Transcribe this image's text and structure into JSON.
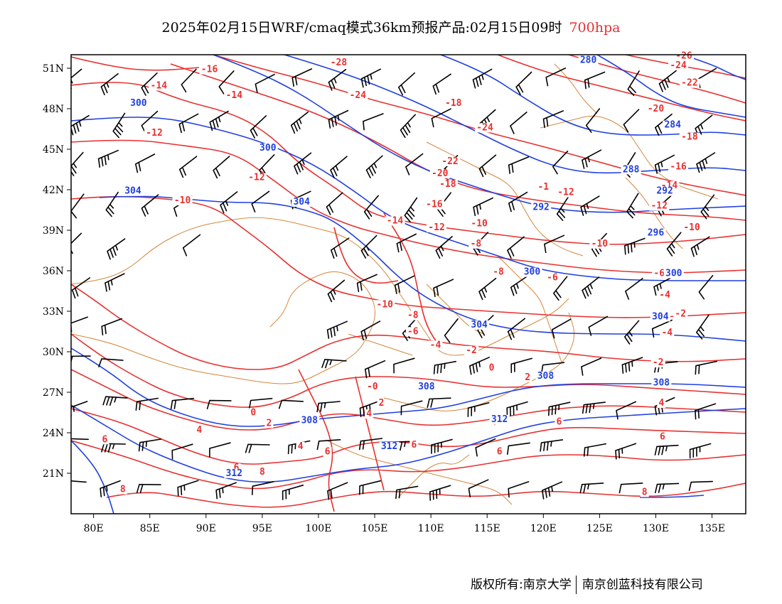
{
  "title": {
    "main": "2025年02月15日WRF/cmaq模式36km预报产品:02月15日09时",
    "level": "700hpa"
  },
  "axes": {
    "lon_labels": [
      "80E",
      "85E",
      "90E",
      "95E",
      "100E",
      "105E",
      "110E",
      "115E",
      "120E",
      "125E",
      "130E",
      "135E"
    ],
    "lon_values": [
      80,
      85,
      90,
      95,
      100,
      105,
      110,
      115,
      120,
      125,
      130,
      135
    ],
    "lat_labels": [
      "51N",
      "48N",
      "45N",
      "42N",
      "39N",
      "36N",
      "33N",
      "30N",
      "27N",
      "24N",
      "21N"
    ],
    "lat_values": [
      51,
      48,
      45,
      42,
      39,
      36,
      33,
      30,
      27,
      24,
      21
    ],
    "lon_range": [
      78,
      138
    ],
    "lat_range": [
      18,
      52
    ]
  },
  "colors": {
    "temperature": "#e8302f",
    "geopotential": "#1f3fe0",
    "border": "#d4873c",
    "wind": "#000000"
  },
  "temperature_labels": [
    {
      "v": "-28",
      "lon": 101.8,
      "lat": 51.2
    },
    {
      "v": "-26",
      "lon": 132.5,
      "lat": 51.7
    },
    {
      "v": "-24",
      "lon": 132.0,
      "lat": 51.0
    },
    {
      "v": "-22",
      "lon": 133.0,
      "lat": 49.7
    },
    {
      "v": "-16",
      "lon": 90.3,
      "lat": 50.7
    },
    {
      "v": "-14",
      "lon": 85.8,
      "lat": 49.5
    },
    {
      "v": "-14",
      "lon": 92.5,
      "lat": 48.8
    },
    {
      "v": "-24",
      "lon": 103.5,
      "lat": 48.8
    },
    {
      "v": "-18",
      "lon": 112.0,
      "lat": 48.2
    },
    {
      "v": "-20",
      "lon": 130.0,
      "lat": 47.8
    },
    {
      "v": "-24",
      "lon": 114.8,
      "lat": 46.4
    },
    {
      "v": "-12",
      "lon": 85.4,
      "lat": 46.0
    },
    {
      "v": "-18",
      "lon": 133.0,
      "lat": 45.7
    },
    {
      "v": "-22",
      "lon": 111.7,
      "lat": 43.9
    },
    {
      "v": "-20",
      "lon": 110.8,
      "lat": 43.0
    },
    {
      "v": "-16",
      "lon": 132.0,
      "lat": 43.5
    },
    {
      "v": "-12",
      "lon": 94.5,
      "lat": 42.7
    },
    {
      "v": "-18",
      "lon": 111.5,
      "lat": 42.2
    },
    {
      "v": "-1",
      "lon": 120.0,
      "lat": 42.0
    },
    {
      "v": "-12",
      "lon": 122.0,
      "lat": 41.6
    },
    {
      "v": "-14",
      "lon": 131.2,
      "lat": 42.1
    },
    {
      "v": "-10",
      "lon": 87.9,
      "lat": 41.0
    },
    {
      "v": "-16",
      "lon": 110.3,
      "lat": 40.7
    },
    {
      "v": "-12",
      "lon": 130.3,
      "lat": 40.6
    },
    {
      "v": "-14",
      "lon": 106.8,
      "lat": 39.5
    },
    {
      "v": "-12",
      "lon": 110.5,
      "lat": 39.0
    },
    {
      "v": "-10",
      "lon": 114.3,
      "lat": 39.3
    },
    {
      "v": "-10",
      "lon": 133.2,
      "lat": 39.0
    },
    {
      "v": "-8",
      "lon": 114.0,
      "lat": 37.8
    },
    {
      "v": "-10",
      "lon": 125.0,
      "lat": 37.8
    },
    {
      "v": "-6",
      "lon": 120.8,
      "lat": 35.3
    },
    {
      "v": "-6",
      "lon": 130.3,
      "lat": 35.6
    },
    {
      "v": "-8",
      "lon": 116.0,
      "lat": 35.7
    },
    {
      "v": "-4",
      "lon": 130.8,
      "lat": 34.0
    },
    {
      "v": "-10",
      "lon": 105.9,
      "lat": 33.3
    },
    {
      "v": "-8",
      "lon": 108.4,
      "lat": 32.5
    },
    {
      "v": "-2",
      "lon": 132.2,
      "lat": 32.6
    },
    {
      "v": "-6",
      "lon": 108.4,
      "lat": 31.3
    },
    {
      "v": "-4",
      "lon": 110.4,
      "lat": 30.3
    },
    {
      "v": "-2",
      "lon": 113.6,
      "lat": 29.9
    },
    {
      "v": "-4",
      "lon": 131.0,
      "lat": 31.2
    },
    {
      "v": "-2",
      "lon": 130.2,
      "lat": 29.0
    },
    {
      "v": "0",
      "lon": 115.4,
      "lat": 28.6
    },
    {
      "v": "2",
      "lon": 118.6,
      "lat": 27.9
    },
    {
      "v": "-0",
      "lon": 104.8,
      "lat": 27.2
    },
    {
      "v": "2",
      "lon": 105.6,
      "lat": 26.0
    },
    {
      "v": "4",
      "lon": 130.5,
      "lat": 26.0
    },
    {
      "v": "0",
      "lon": 94.2,
      "lat": 25.3
    },
    {
      "v": "2",
      "lon": 95.6,
      "lat": 24.5
    },
    {
      "v": "4",
      "lon": 104.5,
      "lat": 25.2
    },
    {
      "v": "4",
      "lon": 89.4,
      "lat": 24.0
    },
    {
      "v": "4",
      "lon": 115.6,
      "lat": 24.6
    },
    {
      "v": "6",
      "lon": 121.4,
      "lat": 24.6
    },
    {
      "v": "4",
      "lon": 98.4,
      "lat": 22.8
    },
    {
      "v": "6",
      "lon": 100.8,
      "lat": 22.4
    },
    {
      "v": "6",
      "lon": 108.5,
      "lat": 22.9
    },
    {
      "v": "6",
      "lon": 116.1,
      "lat": 22.4
    },
    {
      "v": "6",
      "lon": 130.6,
      "lat": 23.5
    },
    {
      "v": "6",
      "lon": 92.7,
      "lat": 21.2
    },
    {
      "v": "8",
      "lon": 95.0,
      "lat": 20.9
    },
    {
      "v": "8",
      "lon": 82.6,
      "lat": 19.6
    },
    {
      "v": "8",
      "lon": 129.0,
      "lat": 19.4
    },
    {
      "v": "6",
      "lon": 81.0,
      "lat": 23.3
    }
  ],
  "height_labels": [
    {
      "v": "300",
      "lon": 84.0,
      "lat": 48.2
    },
    {
      "v": "300",
      "lon": 95.5,
      "lat": 44.9
    },
    {
      "v": "304",
      "lon": 83.5,
      "lat": 41.7
    },
    {
      "v": "304",
      "lon": 98.5,
      "lat": 40.9
    },
    {
      "v": "280",
      "lon": 124.0,
      "lat": 51.4
    },
    {
      "v": "284",
      "lon": 131.5,
      "lat": 46.6
    },
    {
      "v": "288",
      "lon": 127.8,
      "lat": 43.3
    },
    {
      "v": "292",
      "lon": 130.8,
      "lat": 41.7
    },
    {
      "v": "292",
      "lon": 119.8,
      "lat": 40.5
    },
    {
      "v": "296",
      "lon": 130.0,
      "lat": 38.6
    },
    {
      "v": "300",
      "lon": 119.0,
      "lat": 35.7
    },
    {
      "v": "300",
      "lon": 131.6,
      "lat": 35.6
    },
    {
      "v": "304",
      "lon": 130.4,
      "lat": 32.4
    },
    {
      "v": "304",
      "lon": 114.3,
      "lat": 31.8
    },
    {
      "v": "308",
      "lon": 120.2,
      "lat": 28.0
    },
    {
      "v": "308",
      "lon": 109.6,
      "lat": 27.2
    },
    {
      "v": "308",
      "lon": 130.5,
      "lat": 27.5
    },
    {
      "v": "308",
      "lon": 99.2,
      "lat": 24.7
    },
    {
      "v": "312",
      "lon": 116.1,
      "lat": 24.8
    },
    {
      "v": "312",
      "lon": 106.3,
      "lat": 22.8
    },
    {
      "v": "312",
      "lon": 92.5,
      "lat": 20.8
    }
  ],
  "footer": {
    "left": "版权所有:南京大学",
    "right": "南京创蓝科技有限公司"
  }
}
